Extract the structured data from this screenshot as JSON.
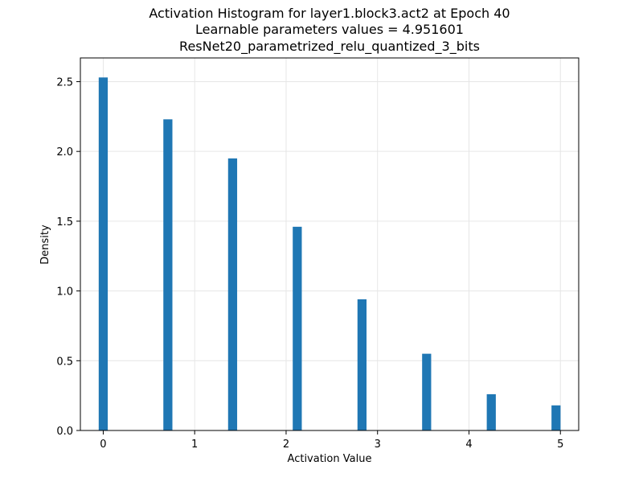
{
  "chart_data": {
    "type": "bar",
    "title": [
      "Activation Histogram for layer1.block3.act2 at Epoch 40",
      "Learnable parameters values = 4.951601",
      "ResNet20_parametrized_relu_quantized_3_bits"
    ],
    "xlabel": "Activation Value",
    "ylabel": "Density",
    "xlim": [
      -0.25,
      5.2
    ],
    "ylim": [
      0,
      2.67
    ],
    "x_ticks": [
      0,
      1,
      2,
      3,
      4,
      5
    ],
    "x_tick_labels": [
      "0",
      "1",
      "2",
      "3",
      "4",
      "5"
    ],
    "y_ticks": [
      0.0,
      0.5,
      1.0,
      1.5,
      2.0,
      2.5
    ],
    "y_tick_labels": [
      "0.0",
      "0.5",
      "1.0",
      "1.5",
      "2.0",
      "2.5"
    ],
    "grid": true,
    "bar_width": 0.099,
    "bars": [
      {
        "x": 0.0,
        "value": 2.53
      },
      {
        "x": 0.707,
        "value": 2.23
      },
      {
        "x": 1.415,
        "value": 1.95
      },
      {
        "x": 2.122,
        "value": 1.46
      },
      {
        "x": 2.83,
        "value": 0.94
      },
      {
        "x": 3.537,
        "value": 0.55
      },
      {
        "x": 4.244,
        "value": 0.26
      },
      {
        "x": 4.952,
        "value": 0.18
      }
    ],
    "colors": {
      "bar": "#1f77b4",
      "grid": "#e6e6e6",
      "axis": "#000000"
    }
  }
}
